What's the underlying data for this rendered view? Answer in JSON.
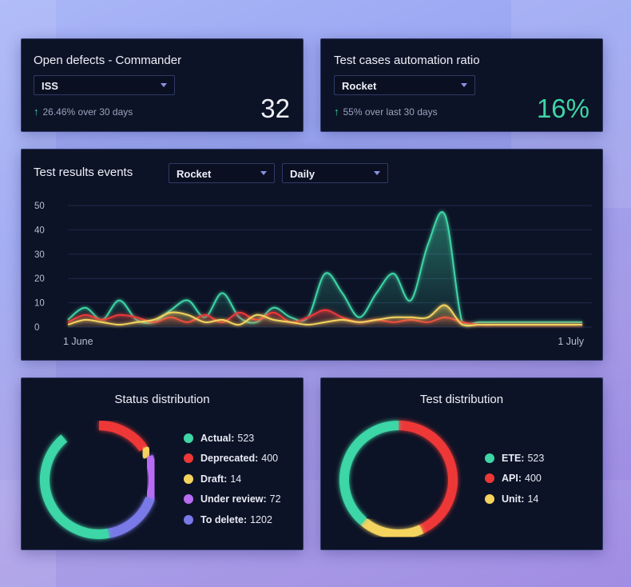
{
  "colors": {
    "green": "#3ed6a6",
    "red": "#ee3838",
    "yellow": "#f4d35e",
    "purple": "#b86cf4",
    "blue": "#7a79e8"
  },
  "defects_card": {
    "title": "Open defects - Commander",
    "select_value": "ISS",
    "trend_icon": "arrow-up-icon",
    "trend_text": "26.46% over 30 days",
    "value": "32"
  },
  "automation_card": {
    "title": "Test cases automation ratio",
    "select_value": "Rocket",
    "trend_icon": "arrow-up-icon",
    "trend_text": "55% over last 30 days",
    "value": "16%"
  },
  "events_card": {
    "title": "Test results events",
    "select_project": "Rocket",
    "select_period": "Daily"
  },
  "status_card": {
    "title": "Status distribution",
    "items": [
      {
        "label": "Actual:",
        "value": "523"
      },
      {
        "label": "Deprecated:",
        "value": "400"
      },
      {
        "label": "Draft:",
        "value": "14"
      },
      {
        "label": "Under review:",
        "value": "72"
      },
      {
        "label": "To delete:",
        "value": "1202"
      }
    ]
  },
  "test_card": {
    "title": "Test distribution",
    "items": [
      {
        "label": "ETE:",
        "value": "523"
      },
      {
        "label": "API:",
        "value": "400"
      },
      {
        "label": "Unit:",
        "value": "14"
      }
    ]
  },
  "chart_data": [
    {
      "type": "area",
      "title": "Test results events",
      "xlabel": "",
      "ylabel": "",
      "x_tick_labels": [
        "1 June",
        "1 July"
      ],
      "ylim": [
        0,
        50
      ],
      "yticks": [
        0,
        10,
        20,
        30,
        40,
        50
      ],
      "grid": true,
      "x": [
        1,
        2,
        3,
        4,
        5,
        6,
        7,
        8,
        9,
        10,
        11,
        12,
        13,
        14,
        15,
        16,
        17,
        18,
        19,
        20,
        21,
        22,
        23,
        24,
        25,
        26,
        27,
        28,
        29,
        30,
        31
      ],
      "series": [
        {
          "color": "#3ed6a6",
          "values": [
            3,
            8,
            3,
            11,
            3,
            2,
            7,
            11,
            4,
            14,
            4,
            2,
            8,
            4,
            4,
            22,
            14,
            4,
            14,
            22,
            11,
            34,
            46,
            2,
            2,
            2,
            2,
            2,
            2,
            2,
            2
          ]
        },
        {
          "color": "#ee3838",
          "values": [
            2,
            5,
            3,
            5,
            4,
            2,
            4,
            2,
            5,
            2,
            6,
            3,
            6,
            2,
            4,
            7,
            4,
            2,
            3,
            2,
            3,
            2,
            4,
            2,
            1,
            1,
            1,
            1,
            1,
            1,
            1
          ]
        },
        {
          "color": "#f4d35e",
          "values": [
            1,
            3,
            2,
            1,
            2,
            3,
            6,
            5,
            2,
            3,
            1,
            5,
            3,
            2,
            1,
            2,
            3,
            2,
            3,
            4,
            4,
            4,
            9,
            1,
            1,
            1,
            1,
            1,
            1,
            1,
            1
          ]
        }
      ]
    },
    {
      "type": "pie",
      "title": "Status distribution",
      "labels": [
        "Actual",
        "Deprecated",
        "Draft",
        "Under review",
        "To delete"
      ],
      "values": [
        523,
        400,
        14,
        72,
        1202
      ],
      "arcs_shown_deg": [
        150,
        55,
        10,
        45,
        60
      ],
      "colors": [
        "#3ed6a6",
        "#ee3838",
        "#f4d35e",
        "#b86cf4",
        "#7a79e8"
      ]
    },
    {
      "type": "pie",
      "title": "Test distribution",
      "labels": [
        "ETE",
        "API",
        "Unit"
      ],
      "values": [
        523,
        400,
        14
      ],
      "arcs_shown_deg": [
        140,
        155,
        65
      ],
      "colors": [
        "#3ed6a6",
        "#ee3838",
        "#f4d35e"
      ]
    }
  ]
}
